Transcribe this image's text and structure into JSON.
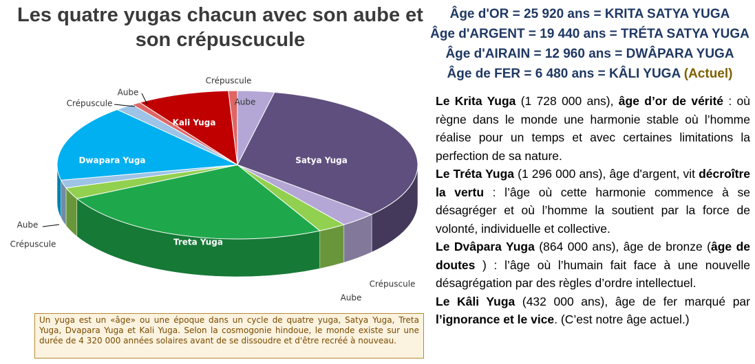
{
  "title": "Les quatre yugas chacun avec son aube et son crépuscucule",
  "chart_data": {
    "type": "pie",
    "categories": [
      "Aube",
      "Satya Yuga",
      "Crépuscule",
      "Aube",
      "Treta Yuga",
      "Crépuscule",
      "Aube",
      "Dwapara Yuga",
      "Crépuscule",
      "Aube",
      "Kali Yuga",
      "Crépuscule"
    ],
    "values": [
      3.3,
      33.3,
      3.3,
      2.5,
      25,
      2.5,
      1.7,
      16.7,
      1.7,
      0.8,
      8.3,
      0.8
    ],
    "colors": [
      "#b4a7d6",
      "#5f4f7e",
      "#b4a7d6",
      "#92d050",
      "#1fa84b",
      "#92d050",
      "#9dc3e6",
      "#00b0f0",
      "#9dc3e6",
      "#e06666",
      "#c00000",
      "#e06666"
    ]
  },
  "caption": "Un yuga est un «âge» ou une époque dans un cycle de quatre yuga, Satya Yuga, Treta Yuga, Dvapara Yuga et Kali Yuga. Selon la cosmogonie hindoue, le monde existe sur une durée de 4 320 000 années solaires avant de se dissoudre et d'être recréé à nouveau.",
  "headings": [
    "Âge d'OR = 25 920 ans = KRITA SATYA YUGA",
    "Âge d'ARGENT = 19 440 ans = TRÉTA SATYA YUGA",
    "Âge d'AIRAIN = 12 960 ans = DWÂPARA YUGA",
    "Âge de FER = 6 480 ans = KÂLI YUGA"
  ],
  "current_note": "(Actuel)",
  "paragraphs": [
    [
      {
        "text": "Le Krita Yuga",
        "bold": true
      },
      {
        "text": " (1 728 000 ans), ",
        "bold": false
      },
      {
        "text": "âge d’or de vérité",
        "bold": true
      },
      {
        "text": " : où règne dans le monde une harmonie stable où l’homme réalise pour un temps et avec certaines limitations la perfection de sa nature.",
        "bold": false
      }
    ],
    [
      {
        "text": "Le Tréta Yuga",
        "bold": true
      },
      {
        "text": " (1 296 000 ans), âge d'argent, vit ",
        "bold": false
      },
      {
        "text": "décroître la vertu",
        "bold": true
      },
      {
        "text": " : l’âge où cette harmonie commence à se désagréger et où l’homme la soutient par la force de volonté, individuelle et collective.",
        "bold": false
      }
    ],
    [
      {
        "text": "Le Dvâpara Yuga",
        "bold": true
      },
      {
        "text": " (864 000 ans), âge de bronze (",
        "bold": false
      },
      {
        "text": "âge de doutes",
        "bold": true
      },
      {
        "text": " ) : l’âge où l’humain fait face à une nouvelle désagrégation par des règles d’ordre intellectuel.",
        "bold": false
      }
    ],
    [
      {
        "text": "Le Kâli Yuga",
        "bold": true
      },
      {
        "text": " (432 000 ans), âge de fer marqué par ",
        "bold": false
      },
      {
        "text": "l’ignorance et le vice",
        "bold": true
      },
      {
        "text": ". (C’est notre âge actuel.)",
        "bold": false
      }
    ]
  ]
}
